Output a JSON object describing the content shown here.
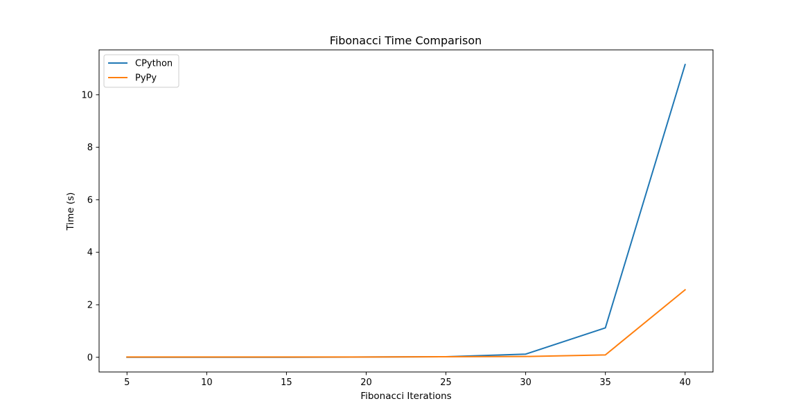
{
  "chart_data": {
    "type": "line",
    "title": "Fibonacci Time Comparison",
    "xlabel": "Fibonacci Iterations",
    "ylabel": "Time (s)",
    "x": [
      5,
      10,
      15,
      20,
      25,
      30,
      35,
      40
    ],
    "series": [
      {
        "name": "CPython",
        "color": "#1f77b4",
        "values": [
          0.0,
          0.0,
          0.0,
          0.01,
          0.02,
          0.12,
          1.12,
          11.15
        ]
      },
      {
        "name": "PyPy",
        "color": "#ff7f0e",
        "values": [
          0.01,
          0.01,
          0.01,
          0.01,
          0.02,
          0.03,
          0.09,
          2.57
        ]
      }
    ],
    "xlim": [
      3.25,
      41.75
    ],
    "ylim": [
      -0.56,
      11.71
    ],
    "xticks": [
      5,
      10,
      15,
      20,
      25,
      30,
      35,
      40
    ],
    "yticks": [
      0,
      2,
      4,
      6,
      8,
      10
    ],
    "grid": false,
    "legend_position": "top-left"
  }
}
